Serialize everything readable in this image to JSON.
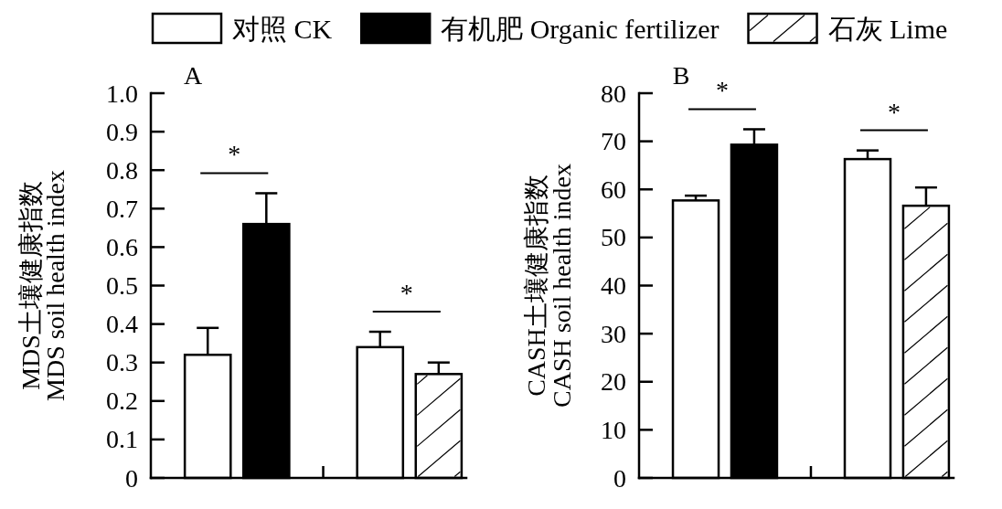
{
  "chart_data": [
    {
      "type": "bar",
      "title": "A",
      "ylabel": "MDS土壤健康指数\nMDS soil health index",
      "categories": [
        null,
        null
      ],
      "series": [
        {
          "name": "对照 CK",
          "color": "#ffffff",
          "values": [
            0.32,
            0.34
          ],
          "errors": [
            0.07,
            0.04
          ]
        },
        {
          "name": "有机肥 Organic fertilizer",
          "color": "#000000",
          "values": [
            0.66,
            null
          ],
          "errors": [
            0.08,
            null
          ]
        },
        {
          "name": "石灰 Lime",
          "color": "#ffffff",
          "values": [
            null,
            0.27
          ],
          "errors": [
            null,
            0.03
          ]
        }
      ],
      "ylim": [
        0,
        1
      ],
      "yticks": [
        0,
        0.1,
        0.2,
        0.3,
        0.4,
        0.5,
        0.6,
        0.7,
        0.8,
        0.9,
        {
          "value": 1,
          "label": "1.0"
        }
      ],
      "legend": "top",
      "annotations": [
        "*",
        "*"
      ]
    },
    {
      "type": "bar",
      "title": "B",
      "ylabel": "CASH土壤健康指数\nCASH soil health index",
      "categories": [
        null,
        null
      ],
      "series": [
        {
          "color": "#ffffff",
          "values": [
            57.7,
            66.3
          ],
          "errors": [
            1.0,
            1.8
          ]
        },
        {
          "color": "#000000",
          "values": [
            69.3,
            null
          ],
          "errors": [
            3.2,
            null
          ]
        },
        {
          "color": "#ffffff",
          "values": [
            null,
            56.6
          ],
          "errors": [
            null,
            3.8
          ]
        }
      ],
      "ylim": [
        0,
        80
      ],
      "yticks": [
        0,
        10,
        20,
        30,
        40,
        50,
        60,
        70,
        80
      ],
      "annotations": [
        "*",
        "*"
      ]
    }
  ]
}
